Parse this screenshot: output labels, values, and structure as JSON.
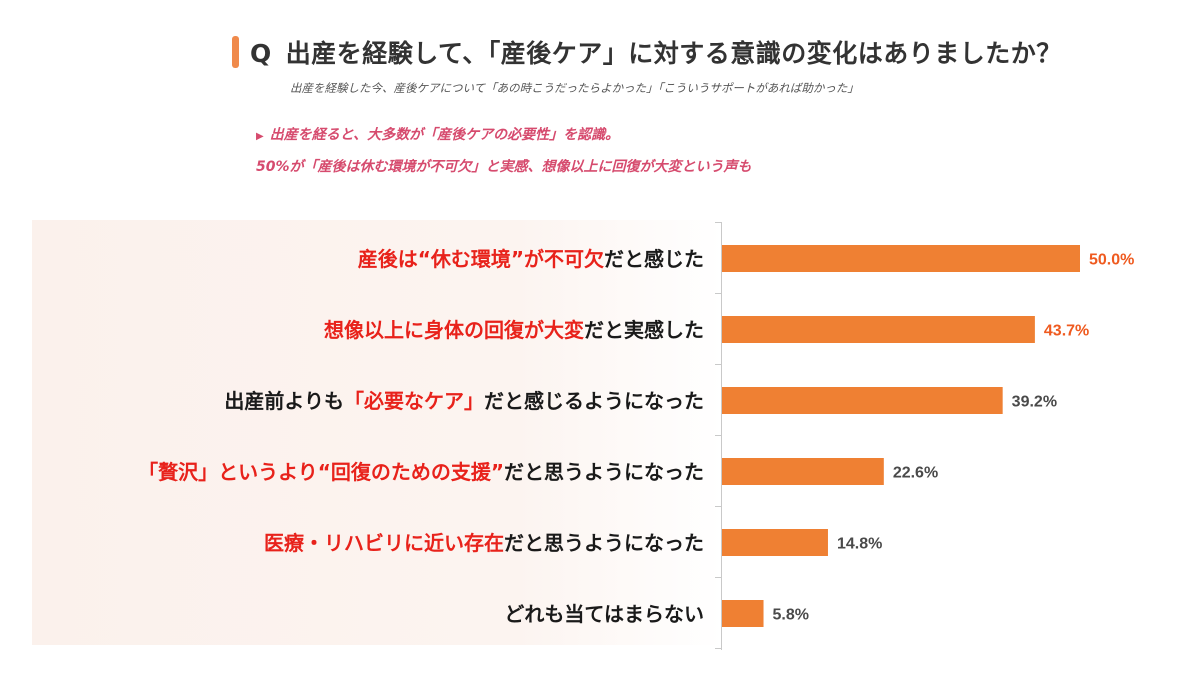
{
  "header": {
    "q_mark": "Q",
    "question": "出産を経験して、「産後ケア」に対する意識の変化はありましたか？",
    "subtitle": "出産を経験した今、産後ケアについて「あの時こうだったらよかった」「こういうサポートがあれば助かった」",
    "highlight_line1": "出産を経ると、大多数が「産後ケアの必要性」を認識。",
    "highlight_line2": "50%が「産後は休む環境が不可欠」と実感、想像以上に回復が大変という声も"
  },
  "colors": {
    "bar": "#ef8033",
    "highlight_value": "#ef5a1f",
    "normal_value": "#4a4a4a",
    "highlight_text": "#e8221b",
    "headline_pink": "#d64b6e"
  },
  "chart_data": {
    "type": "bar",
    "orientation": "horizontal",
    "unit": "%",
    "categories": [
      "産後は“休む環境”が不可欠だと感じた",
      "想像以上に身体の回復が大変だと実感した",
      "出産前よりも「必要なケア」だと感じるようになった",
      "「贅沢」というより“回復のための支援”だと思うようになった",
      "医療・リハビリに近い存在だと思うようになった",
      "どれも当てはまらない"
    ],
    "label_parts": [
      [
        {
          "t": "産後は“休む環境”が不可欠",
          "hl": true
        },
        {
          "t": "だと感じた",
          "hl": false
        }
      ],
      [
        {
          "t": "想像以上に身体の回復が大変",
          "hl": true
        },
        {
          "t": "だと実感した",
          "hl": false
        }
      ],
      [
        {
          "t": "出産前よりも",
          "hl": false
        },
        {
          "t": "「必要なケア」",
          "hl": true
        },
        {
          "t": "だと感じるようになった",
          "hl": false
        }
      ],
      [
        {
          "t": "「贅沢」というより“回復のための支援”",
          "hl": true
        },
        {
          "t": "だと思うようになった",
          "hl": false
        }
      ],
      [
        {
          "t": "医療・リハビリに近い存在",
          "hl": true
        },
        {
          "t": "だと思うようになった",
          "hl": false
        }
      ],
      [
        {
          "t": "どれも当てはまらない",
          "hl": false
        }
      ]
    ],
    "values": [
      50.0,
      43.7,
      39.2,
      22.6,
      14.8,
      5.8
    ],
    "value_labels": [
      "50.0%",
      "43.7%",
      "39.2%",
      "22.6%",
      "14.8%",
      "5.8%"
    ],
    "highlighted_values": [
      true,
      true,
      false,
      false,
      false,
      false
    ],
    "xlim": [
      0,
      100
    ],
    "grid": false,
    "legend": "none"
  }
}
